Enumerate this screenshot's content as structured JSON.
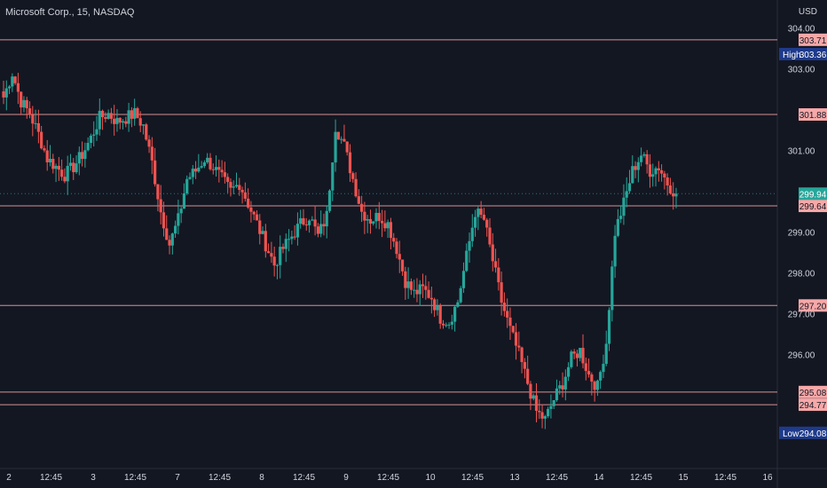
{
  "header": {
    "symbol": "Microsoft Corp., 15, NASDAQ",
    "currency": "USD"
  },
  "colors": {
    "background": "#131722",
    "up": "#26a69a",
    "down": "#ef5350",
    "level_line": "#f7a8a8",
    "level_label_bg": "#f7a8a8",
    "last_price_bg": "#26a69a",
    "high_low_bg": "#1e3a8a",
    "axis_text": "#d1d4dc"
  },
  "price_axis": {
    "ticks": [
      "304.00",
      "303.00",
      "301.00",
      "299.00",
      "298.00",
      "297.00",
      "296.00"
    ]
  },
  "time_axis": {
    "ticks": [
      "2",
      "12:45",
      "3",
      "12:45",
      "7",
      "12:45",
      "8",
      "12:45",
      "9",
      "12:45",
      "10",
      "12:45",
      "13",
      "12:45",
      "14",
      "12:45",
      "15",
      "12:45",
      "16"
    ]
  },
  "levels": [
    "303.71",
    "301.88",
    "299.64",
    "297.20",
    "295.08",
    "294.77"
  ],
  "markers": {
    "high": {
      "label": "High",
      "value": "303.36"
    },
    "low": {
      "label": "Low",
      "value": "294.08"
    },
    "last": {
      "value": "299.94"
    }
  },
  "chart_data": {
    "type": "candlestick",
    "title": "Microsoft Corp., 15, NASDAQ",
    "currency": "USD",
    "ylim": [
      293.6,
      304.3
    ],
    "levels": [
      303.71,
      301.88,
      299.64,
      297.2,
      295.08,
      294.77
    ],
    "high": 303.36,
    "low": 294.08,
    "last": 299.94,
    "close_path": [
      302.3,
      302.9,
      302.2,
      301.9,
      301.4,
      300.8,
      300.6,
      300.4,
      300.6,
      300.9,
      301.3,
      301.8,
      301.9,
      301.7,
      301.8,
      301.9,
      301.6,
      300.7,
      299.5,
      298.7,
      299.3,
      300.3,
      300.5,
      300.8,
      300.6,
      300.3,
      300.0,
      300.2,
      299.7,
      299.2,
      298.7,
      298.2,
      298.6,
      298.9,
      299.2,
      299.4,
      298.9,
      299.4,
      301.6,
      301.1,
      300.3,
      299.5,
      299.3,
      299.4,
      299.2,
      298.6,
      297.8,
      297.5,
      297.6,
      297.4,
      296.9,
      296.8,
      297.3,
      298.4,
      299.5,
      299.3,
      298.3,
      297.3,
      296.6,
      296.0,
      295.3,
      294.6,
      294.4,
      294.9,
      295.3,
      295.9,
      296.1,
      295.5,
      295.2,
      296.3,
      299.0,
      299.7,
      300.5,
      300.9,
      300.5,
      300.6,
      300.2,
      299.94
    ]
  }
}
